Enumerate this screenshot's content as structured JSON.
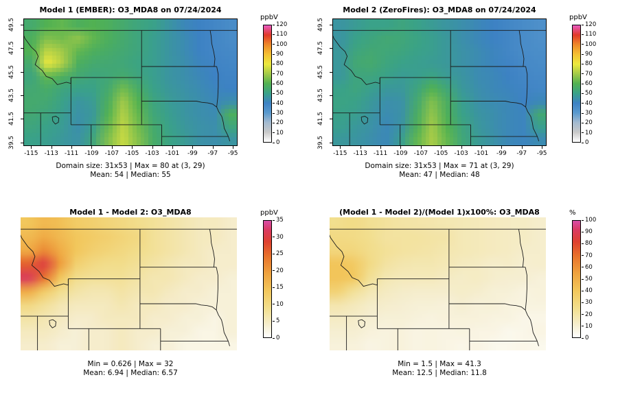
{
  "map_extent": {
    "lon_min": -115.7,
    "lon_max": -94.6,
    "lat_min": 39.25,
    "lat_max": 49.95
  },
  "palettes": {
    "o3": [
      [
        0.0,
        "#ffffff"
      ],
      [
        0.083,
        "#c9c9c9"
      ],
      [
        0.167,
        "#a3bad0"
      ],
      [
        0.25,
        "#5a9ace"
      ],
      [
        0.333,
        "#3d82c4"
      ],
      [
        0.417,
        "#3aa289"
      ],
      [
        0.5,
        "#52b252"
      ],
      [
        0.583,
        "#a2ca49"
      ],
      [
        0.667,
        "#ece93e"
      ],
      [
        0.75,
        "#f4c132"
      ],
      [
        0.833,
        "#ee8a29"
      ],
      [
        0.917,
        "#e13a29"
      ],
      [
        1.0,
        "#e95ac1"
      ]
    ],
    "hot": [
      [
        0.0,
        "#ffffff"
      ],
      [
        0.1,
        "#f6efd2"
      ],
      [
        0.25,
        "#f2df8e"
      ],
      [
        0.4,
        "#f2c75c"
      ],
      [
        0.55,
        "#efa23e"
      ],
      [
        0.7,
        "#e8712c"
      ],
      [
        0.82,
        "#de4130"
      ],
      [
        0.92,
        "#da3a60"
      ],
      [
        1.0,
        "#d84da8"
      ]
    ]
  },
  "chart_data": [
    {
      "type": "heatmap",
      "title": "Model 1 (EMBER): O3_MDA8 on 07/24/2024",
      "stats": [
        "Domain size: 31x53 | Max = 80 at (3, 29)",
        "Mean: 54 | Median: 55"
      ],
      "colorbar": {
        "label": "ppbV",
        "min": 0,
        "max": 120,
        "ticks": [
          0,
          10,
          20,
          30,
          40,
          50,
          60,
          70,
          80,
          90,
          100,
          110,
          120
        ]
      },
      "palette": "o3",
      "cells_x": 53,
      "cells_y": 31,
      "axes": {
        "x_ticks": [
          -115,
          -113,
          -111,
          -109,
          -107,
          -105,
          -103,
          -101,
          -99,
          -97,
          -95
        ],
        "y_ticks": [
          39.5,
          41.5,
          43.5,
          45.5,
          47.5,
          49.5
        ]
      },
      "grid": [
        [
          55,
          60,
          62,
          58,
          60,
          58,
          55,
          52,
          50,
          46,
          42,
          40,
          38,
          36
        ],
        [
          58,
          66,
          64,
          68,
          62,
          58,
          55,
          52,
          49,
          46,
          43,
          40,
          38,
          36
        ],
        [
          60,
          74,
          70,
          62,
          58,
          56,
          54,
          52,
          49,
          46,
          43,
          40,
          38,
          37
        ],
        [
          55,
          80,
          72,
          58,
          55,
          54,
          53,
          51,
          49,
          46,
          44,
          41,
          39,
          38
        ],
        [
          52,
          62,
          58,
          54,
          52,
          53,
          55,
          52,
          49,
          46,
          44,
          42,
          40,
          39
        ],
        [
          54,
          56,
          52,
          50,
          50,
          55,
          64,
          56,
          50,
          47,
          45,
          43,
          41,
          40
        ],
        [
          55,
          54,
          50,
          46,
          48,
          58,
          70,
          60,
          52,
          48,
          46,
          44,
          42,
          44
        ],
        [
          54,
          52,
          49,
          45,
          47,
          60,
          72,
          62,
          53,
          49,
          46,
          44,
          43,
          58
        ],
        [
          52,
          50,
          48,
          44,
          49,
          63,
          74,
          64,
          55,
          50,
          47,
          45,
          44,
          52
        ],
        [
          50,
          49,
          47,
          45,
          52,
          66,
          75,
          66,
          56,
          51,
          48,
          45,
          44,
          46
        ]
      ]
    },
    {
      "type": "heatmap",
      "title": "Model 2 (ZeroFires): O3_MDA8 on 07/24/2024",
      "stats": [
        "Domain size: 31x53 | Max = 71 at (3, 29)",
        "Mean: 47 | Median: 48"
      ],
      "colorbar": {
        "label": "ppbV",
        "min": 0,
        "max": 120,
        "ticks": [
          0,
          10,
          20,
          30,
          40,
          50,
          60,
          70,
          80,
          90,
          100,
          110,
          120
        ]
      },
      "palette": "o3",
      "cells_x": 53,
      "cells_y": 31,
      "axes": {
        "x_ticks": [
          -115,
          -113,
          -111,
          -109,
          -107,
          -105,
          -103,
          -101,
          -99,
          -97,
          -95
        ],
        "y_ticks": [
          39.5,
          41.5,
          43.5,
          45.5,
          47.5,
          49.5
        ]
      },
      "grid": [
        [
          46,
          48,
          50,
          50,
          52,
          50,
          48,
          46,
          44,
          42,
          40,
          38,
          36,
          34
        ],
        [
          46,
          50,
          52,
          54,
          53,
          51,
          49,
          47,
          44,
          42,
          40,
          38,
          36,
          34
        ],
        [
          47,
          52,
          54,
          53,
          52,
          50,
          49,
          47,
          45,
          43,
          41,
          38,
          36,
          35
        ],
        [
          47,
          54,
          55,
          52,
          50,
          49,
          48,
          47,
          45,
          43,
          41,
          39,
          37,
          36
        ],
        [
          47,
          52,
          52,
          50,
          48,
          49,
          51,
          48,
          46,
          43,
          42,
          40,
          38,
          37
        ],
        [
          50,
          52,
          49,
          47,
          47,
          52,
          60,
          53,
          47,
          44,
          42,
          41,
          39,
          38
        ],
        [
          51,
          50,
          47,
          44,
          45,
          55,
          66,
          57,
          49,
          45,
          43,
          42,
          40,
          42
        ],
        [
          50,
          49,
          46,
          43,
          45,
          57,
          68,
          58,
          50,
          46,
          44,
          42,
          41,
          54
        ],
        [
          49,
          47,
          45,
          42,
          46,
          59,
          70,
          60,
          52,
          47,
          44,
          42,
          41,
          49
        ],
        [
          47,
          46,
          44,
          42,
          49,
          62,
          71,
          62,
          53,
          48,
          45,
          42,
          41,
          43
        ]
      ]
    },
    {
      "type": "heatmap",
      "title": "Model 1 - Model 2: O3_MDA8",
      "stats": [
        "Min = 0.626 | Max = 32",
        "Mean: 6.94 | Median: 6.57"
      ],
      "colorbar": {
        "label": "ppbV",
        "min": 0,
        "max": 35,
        "ticks": [
          0,
          5,
          10,
          15,
          20,
          25,
          30,
          35
        ]
      },
      "palette": "hot",
      "cells_x": 53,
      "cells_y": 31,
      "axes": null,
      "grid": [
        [
          14,
          16,
          15,
          13,
          12,
          11,
          10,
          9,
          8,
          7,
          6,
          5,
          5,
          4
        ],
        [
          16,
          18,
          16,
          14,
          13,
          12,
          11,
          10,
          8,
          7,
          6,
          5,
          5,
          4
        ],
        [
          18,
          22,
          18,
          14,
          12,
          11,
          10,
          9,
          8,
          7,
          6,
          5,
          4,
          4
        ],
        [
          26,
          30,
          20,
          12,
          10,
          9,
          9,
          8,
          7,
          6,
          5,
          5,
          4,
          4
        ],
        [
          32,
          24,
          14,
          9,
          8,
          8,
          8,
          7,
          6,
          6,
          5,
          4,
          4,
          3
        ],
        [
          18,
          13,
          9,
          7,
          6,
          6,
          7,
          6,
          6,
          5,
          4,
          4,
          3,
          3
        ],
        [
          10,
          8,
          6,
          5,
          5,
          5,
          6,
          5,
          5,
          4,
          4,
          3,
          3,
          3
        ],
        [
          7,
          6,
          5,
          4,
          4,
          5,
          5,
          5,
          4,
          4,
          3,
          3,
          2,
          3
        ],
        [
          5,
          5,
          4,
          3,
          4,
          4,
          5,
          4,
          4,
          3,
          3,
          2,
          2,
          3
        ],
        [
          4,
          4,
          3,
          3,
          4,
          4,
          5,
          4,
          3,
          3,
          2,
          2,
          2,
          2
        ]
      ]
    },
    {
      "type": "heatmap",
      "title": "(Model 1 - Model 2)/(Model 1)x100%: O3_MDA8",
      "stats": [
        "Min = 1.5 | Max = 41.3",
        "Mean: 12.5 | Median: 11.8"
      ],
      "colorbar": {
        "label": "%",
        "min": 0,
        "max": 100,
        "ticks": [
          0,
          10,
          20,
          30,
          40,
          50,
          60,
          70,
          80,
          90,
          100
        ]
      },
      "palette": "hot",
      "cells_x": 53,
      "cells_y": 31,
      "axes": null,
      "grid": [
        [
          25,
          27,
          24,
          22,
          20,
          19,
          18,
          17,
          16,
          15,
          14,
          13,
          13,
          11
        ],
        [
          28,
          27,
          25,
          21,
          21,
          21,
          20,
          19,
          16,
          15,
          14,
          13,
          13,
          11
        ],
        [
          30,
          30,
          26,
          23,
          21,
          20,
          19,
          17,
          16,
          15,
          14,
          13,
          11,
          11
        ],
        [
          41,
          38,
          28,
          21,
          18,
          17,
          17,
          16,
          14,
          13,
          11,
          12,
          10,
          11
        ],
        [
          41,
          39,
          24,
          17,
          15,
          15,
          15,
          13,
          12,
          13,
          11,
          10,
          10,
          8
        ],
        [
          33,
          23,
          17,
          14,
          12,
          11,
          11,
          11,
          12,
          11,
          9,
          9,
          7,
          8
        ],
        [
          18,
          15,
          12,
          11,
          10,
          9,
          9,
          8,
          10,
          8,
          9,
          7,
          7,
          7
        ],
        [
          13,
          12,
          10,
          9,
          9,
          8,
          7,
          8,
          8,
          8,
          7,
          7,
          5,
          5
        ],
        [
          10,
          10,
          8,
          7,
          8,
          6,
          7,
          6,
          7,
          6,
          6,
          4,
          5,
          6
        ],
        [
          8,
          8,
          6,
          7,
          8,
          6,
          7,
          6,
          5,
          6,
          4,
          4,
          5,
          4
        ]
      ]
    }
  ]
}
